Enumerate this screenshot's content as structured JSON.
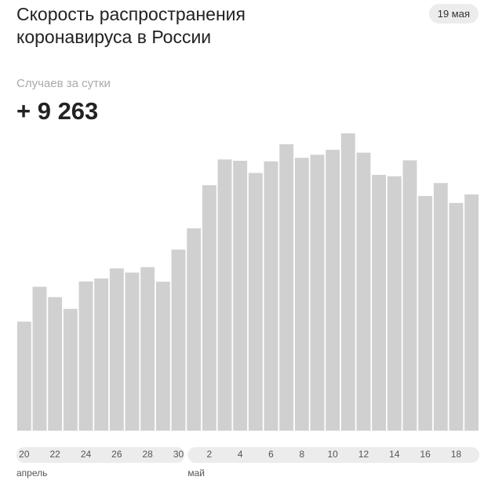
{
  "chart_data": {
    "type": "bar",
    "title": "Скорость распространения коронавируса в России",
    "date_badge": "19 мая",
    "subtitle": "Случаев за сутки",
    "color": "#d0d0d0",
    "categories": [
      "20",
      null,
      "22",
      null,
      "24",
      null,
      "26",
      null,
      "28",
      null,
      "30",
      null,
      "2",
      null,
      "4",
      null,
      "6",
      null,
      "8",
      null,
      "10",
      null,
      "12",
      null,
      "14",
      null,
      "16",
      null,
      "18",
      null
    ],
    "months": [
      "апрель",
      "май"
    ],
    "values": [
      4277,
      5642,
      5236,
      4774,
      5849,
      5966,
      6361,
      6198,
      6411,
      5841,
      7099,
      7933,
      9623,
      10633,
      10581,
      10102,
      10559,
      11231,
      10699,
      10817,
      11012,
      11656,
      10899,
      10028,
      9974,
      10598,
      9200,
      9709,
      8926,
      9263
    ],
    "value_labels": [
      null,
      null,
      null,
      null,
      null,
      null,
      null,
      null,
      null,
      null,
      null,
      null,
      null,
      null,
      null,
      null,
      null,
      null,
      null,
      null,
      null,
      null,
      null,
      null,
      null,
      null,
      null,
      null,
      null,
      "+ 9 263"
    ]
  }
}
